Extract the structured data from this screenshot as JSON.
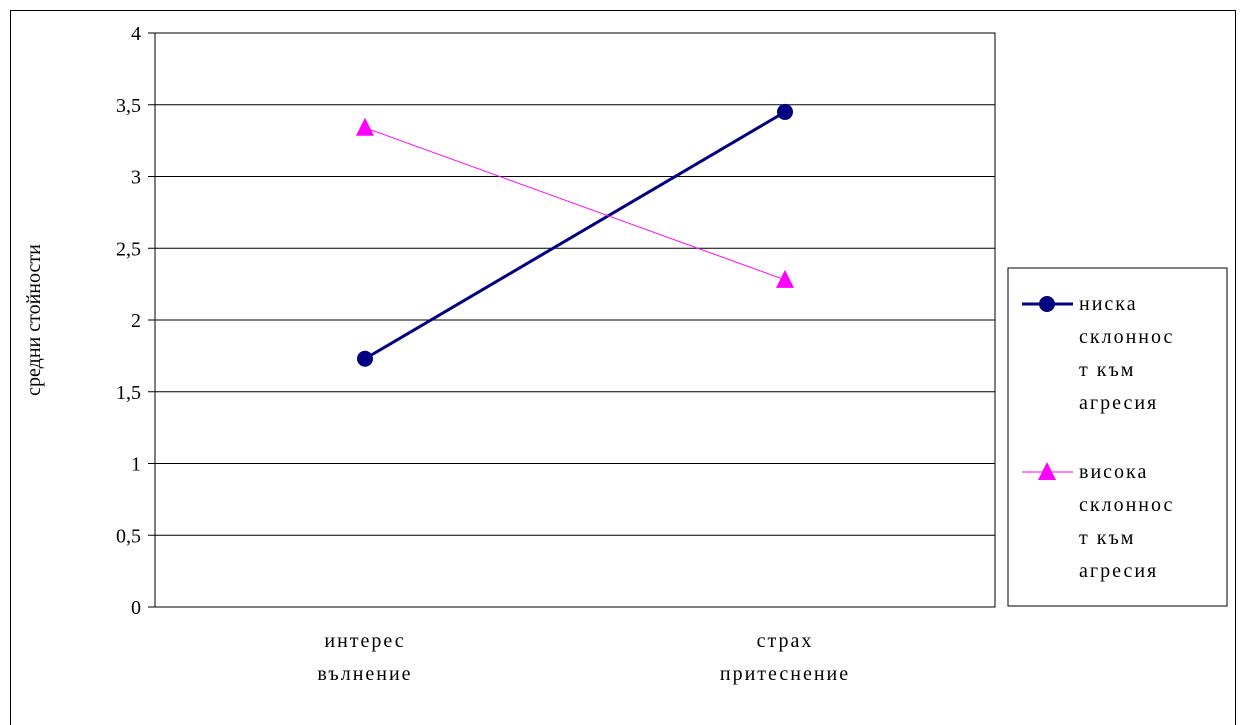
{
  "chart_data": {
    "type": "line",
    "title": "",
    "xlabel": "",
    "ylabel": "средни стойности",
    "ylim": [
      0,
      4
    ],
    "ytick_step": 0.5,
    "yticks": [
      "0",
      "0,5",
      "1",
      "1,5",
      "2",
      "2,5",
      "3",
      "3,5",
      "4"
    ],
    "categories": [
      [
        "интерес",
        "вълнение"
      ],
      [
        "страх",
        "притеснение"
      ]
    ],
    "grid": true,
    "legend_position": "right",
    "series": [
      {
        "name": [
          "ниска",
          "склоннос",
          "т към",
          "агресия"
        ],
        "values": [
          1.73,
          3.45
        ],
        "color": "#000080",
        "marker": "circle"
      },
      {
        "name": [
          "висока",
          "склоннос",
          "т към",
          "агресия"
        ],
        "values": [
          3.34,
          2.28
        ],
        "color": "#ff00ff",
        "marker": "triangle"
      }
    ]
  }
}
